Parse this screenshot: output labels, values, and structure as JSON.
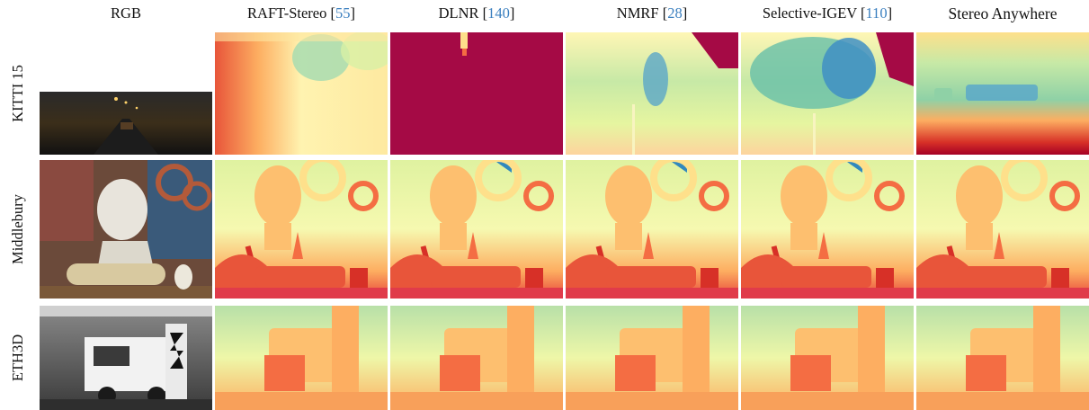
{
  "columns": [
    {
      "label": "RGB",
      "ref": ""
    },
    {
      "label": "RAFT-Stereo",
      "ref": "55"
    },
    {
      "label": "DLNR",
      "ref": "140"
    },
    {
      "label": "NMRF",
      "ref": "28"
    },
    {
      "label": "Selective-IGEV",
      "ref": "110"
    },
    {
      "label": "Stereo Anywhere",
      "ref": ""
    }
  ],
  "rows": [
    {
      "label": "KITTI 15"
    },
    {
      "label": "Middlebury"
    },
    {
      "label": "ETH3D"
    }
  ],
  "colormap": {
    "near": "#a50026",
    "mid_warm": "#f46d43",
    "mid": "#ffffbf",
    "mid_cool": "#abdda4",
    "far": "#3288bd"
  }
}
